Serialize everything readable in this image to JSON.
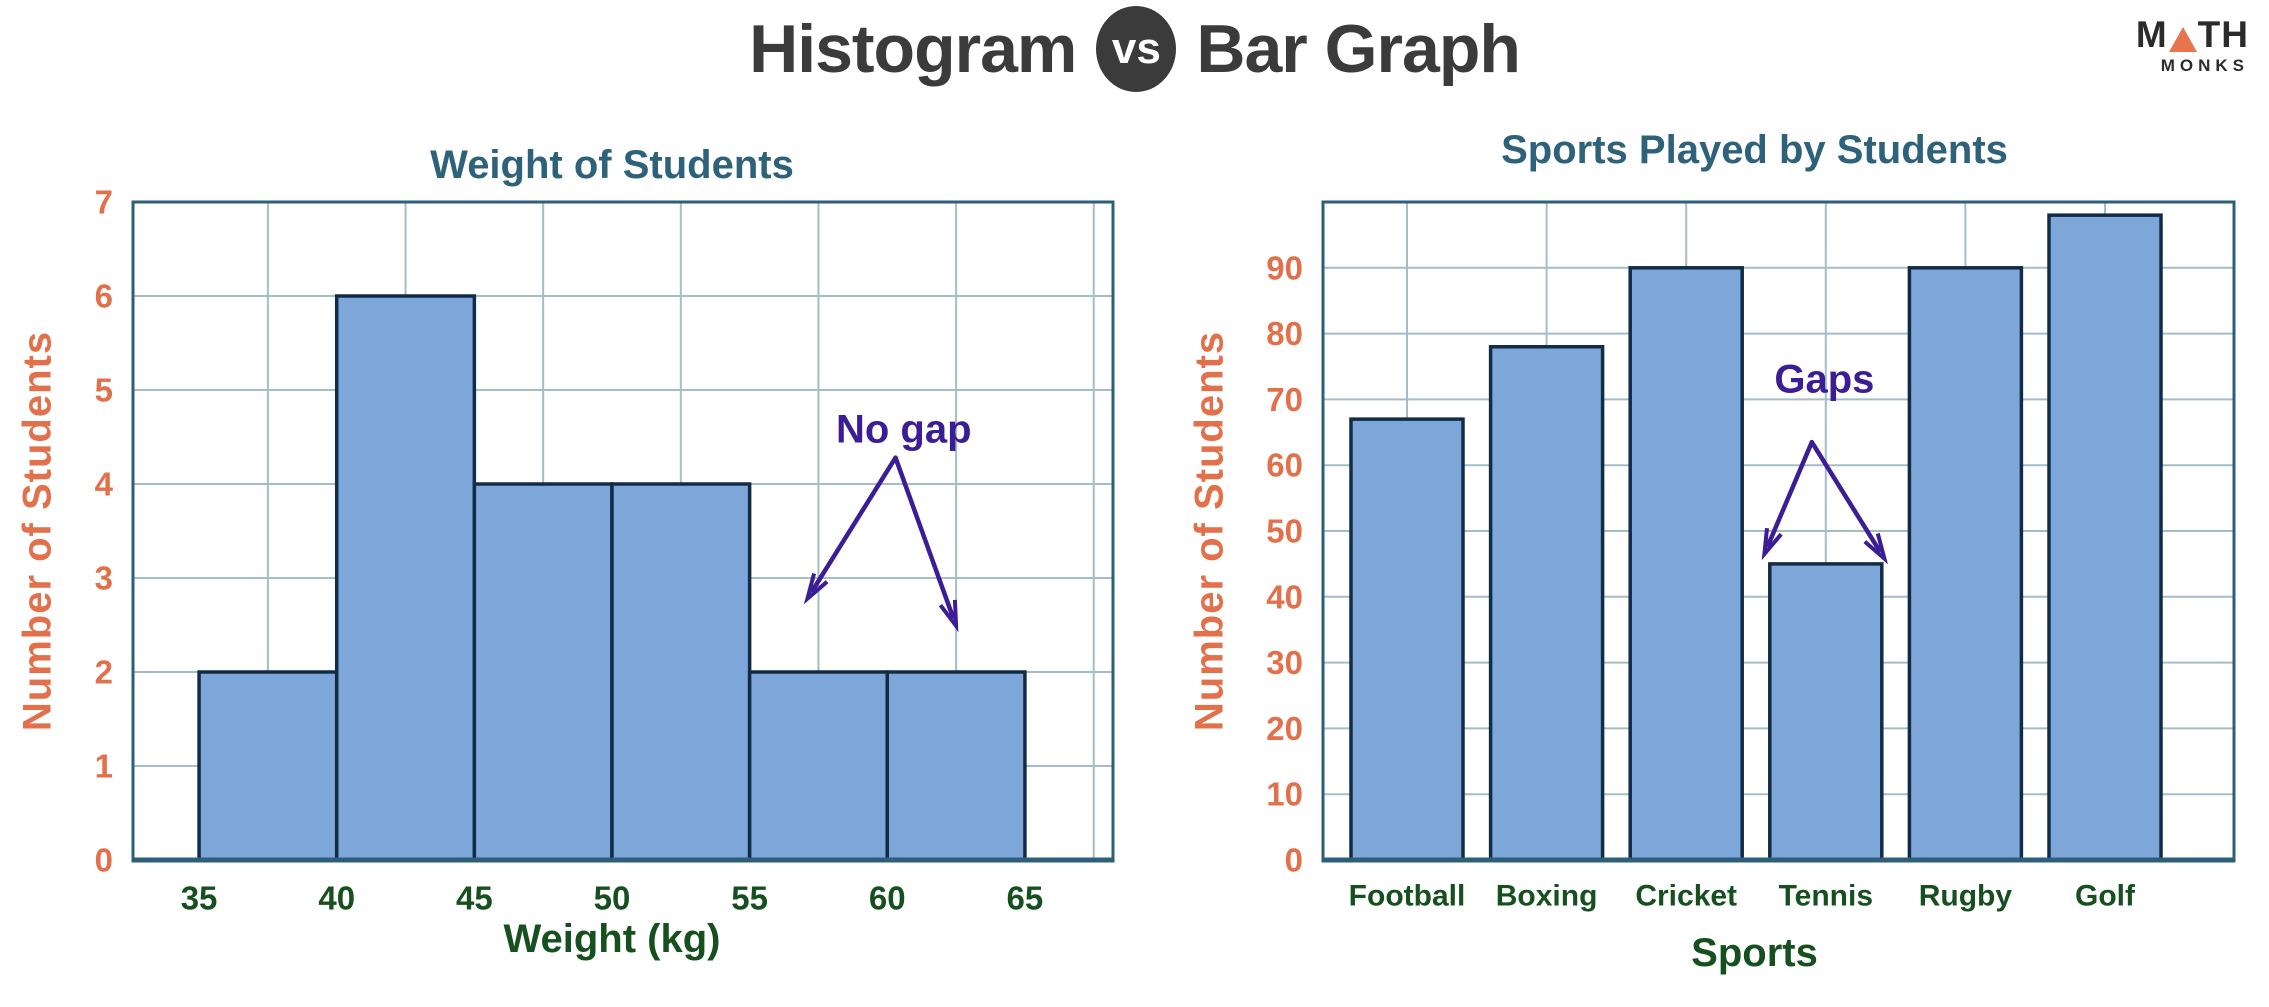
{
  "header": {
    "title_left": "Histogram",
    "vs_label": "vs",
    "title_right": "Bar Graph"
  },
  "logo": {
    "line1_m": "M",
    "line1_th": "TH",
    "line2": "MONKS"
  },
  "colors": {
    "header_text": "#3B3B3B",
    "logo_text": "#2B2B2B",
    "logo_triangle": "#E8744D",
    "title_teal": "#2E617A",
    "orange": "#E2714B",
    "green": "#17501F",
    "purple": "#3B1D96",
    "bar_fill": "#7DA7D9",
    "bar_border": "#132C46",
    "grid": "#A3BDC9",
    "plot_border": "#2D5F79",
    "background": "#FFFFFF"
  },
  "chart_data": [
    {
      "type": "histogram",
      "title": "Weight of Students",
      "xlabel": "Weight (kg)",
      "ylabel": "Number of Students",
      "bins": [
        {
          "from": 35,
          "to": 40,
          "count": 2
        },
        {
          "from": 40,
          "to": 45,
          "count": 6
        },
        {
          "from": 45,
          "to": 50,
          "count": 4
        },
        {
          "from": 50,
          "to": 55,
          "count": 4
        },
        {
          "from": 55,
          "to": 60,
          "count": 2
        },
        {
          "from": 60,
          "to": 65,
          "count": 2
        }
      ],
      "x_ticks": [
        35,
        40,
        45,
        50,
        55,
        60,
        65
      ],
      "y_ticks": [
        0,
        1,
        2,
        3,
        4,
        5,
        6,
        7
      ],
      "xlim": [
        32.6,
        68.2
      ],
      "ylim": [
        0,
        7
      ],
      "grid": "on",
      "grid_x_lines": [
        37.5,
        42.5,
        47.5,
        52.5,
        57.5,
        62.5,
        67.5
      ],
      "annotation": {
        "text": "No gap",
        "text_xy": [
          60.6,
          4.58
        ],
        "apex_xy": [
          60.3,
          4.28
        ],
        "arrow_tips": [
          [
            57.1,
            2.78
          ],
          [
            62.5,
            2.49
          ]
        ]
      }
    },
    {
      "type": "bar",
      "title": "Sports Played by Students",
      "xlabel": "Sports",
      "ylabel": "Number of Students",
      "categories": [
        "Football",
        "Boxing",
        "Cricket",
        "Tennis",
        "Rugby",
        "Golf"
      ],
      "values": [
        67,
        78,
        90,
        45,
        90,
        98
      ],
      "y_ticks": [
        0,
        10,
        20,
        30,
        40,
        50,
        60,
        70,
        80,
        90
      ],
      "ylim": [
        0,
        100
      ],
      "grid": "on",
      "annotation": {
        "text": "Gaps",
        "text_xy": [
          2.99,
          73
        ],
        "apex_xy": [
          2.9,
          63.5
        ],
        "arrow_tips": [
          [
            2.56,
            46.5
          ],
          [
            3.42,
            45.8
          ]
        ]
      }
    }
  ]
}
